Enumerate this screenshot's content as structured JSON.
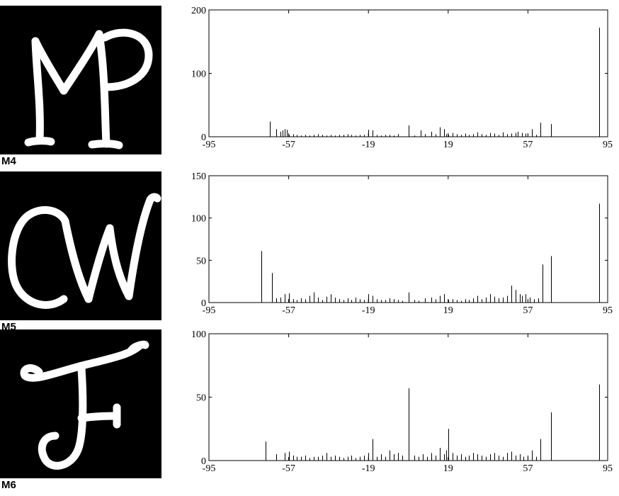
{
  "chart_data": [
    {
      "type": "bar",
      "label": "M4",
      "xlim": [
        -95,
        95
      ],
      "ylim": [
        0,
        200
      ],
      "xticks": [
        -95,
        -57,
        -19,
        19,
        57,
        95
      ],
      "yticks": [
        0,
        100,
        200
      ],
      "x": [
        -66,
        -63,
        -61,
        -60,
        -59,
        -58,
        -57,
        -55,
        -53,
        -51,
        -49,
        -47,
        -45,
        -43,
        -41,
        -39,
        -37,
        -35,
        -33,
        -31,
        -29,
        -27,
        -25,
        -23,
        -21,
        -19,
        -17,
        -15,
        -13,
        -11,
        -9,
        -7,
        -5,
        0,
        3,
        6,
        8,
        11,
        13,
        15,
        17,
        18,
        19,
        21,
        23,
        25,
        27,
        29,
        31,
        33,
        35,
        37,
        39,
        41,
        43,
        45,
        47,
        49,
        51,
        52,
        54,
        56,
        57,
        59,
        61,
        63,
        68,
        91
      ],
      "values": [
        24,
        12,
        8,
        10,
        12,
        11,
        3,
        4,
        3,
        2,
        3,
        2,
        3,
        4,
        3,
        2,
        3,
        2,
        3,
        3,
        4,
        3,
        2,
        3,
        3,
        11,
        10,
        3,
        2,
        3,
        3,
        2,
        4,
        18,
        2,
        10,
        4,
        8,
        4,
        15,
        12,
        4,
        3,
        6,
        4,
        3,
        5,
        3,
        4,
        7,
        4,
        3,
        6,
        5,
        3,
        7,
        4,
        5,
        6,
        8,
        6,
        5,
        4,
        12,
        3,
        22,
        20,
        172
      ]
    },
    {
      "type": "bar",
      "label": "M5",
      "xlim": [
        -95,
        95
      ],
      "ylim": [
        0,
        150
      ],
      "xticks": [
        -95,
        -57,
        -19,
        19,
        57,
        95
      ],
      "yticks": [
        0,
        50,
        100,
        150
      ],
      "x": [
        -70,
        -65,
        -63,
        -61,
        -59,
        -57,
        -55,
        -53,
        -51,
        -49,
        -47,
        -45,
        -43,
        -41,
        -39,
        -37,
        -35,
        -33,
        -31,
        -29,
        -27,
        -25,
        -23,
        -21,
        -19,
        -17,
        -15,
        -13,
        -11,
        -9,
        -7,
        -5,
        -3,
        0,
        3,
        5,
        8,
        11,
        13,
        15,
        17,
        19,
        21,
        23,
        25,
        27,
        29,
        31,
        33,
        35,
        37,
        39,
        41,
        43,
        45,
        47,
        49,
        51,
        53,
        54,
        56,
        58,
        60,
        62,
        64,
        68,
        91
      ],
      "values": [
        61,
        35,
        5,
        6,
        10,
        11,
        4,
        3,
        5,
        4,
        8,
        12,
        6,
        3,
        7,
        10,
        6,
        4,
        3,
        5,
        3,
        6,
        4,
        3,
        10,
        8,
        4,
        3,
        3,
        5,
        4,
        3,
        2,
        12,
        3,
        2,
        5,
        6,
        4,
        8,
        10,
        3,
        4,
        3,
        2,
        4,
        3,
        5,
        8,
        4,
        6,
        10,
        7,
        5,
        6,
        8,
        20,
        15,
        10,
        8,
        10,
        6,
        4,
        5,
        45,
        55,
        117
      ]
    },
    {
      "type": "bar",
      "label": "M6",
      "xlim": [
        -95,
        95
      ],
      "ylim": [
        0,
        100
      ],
      "xticks": [
        -95,
        -57,
        -19,
        19,
        57,
        95
      ],
      "yticks": [
        0,
        50,
        100
      ],
      "x": [
        -68,
        -63,
        -59,
        -57,
        -55,
        -53,
        -51,
        -49,
        -47,
        -45,
        -43,
        -41,
        -39,
        -37,
        -35,
        -33,
        -31,
        -29,
        -27,
        -25,
        -23,
        -21,
        -19,
        -17,
        -15,
        -13,
        -11,
        -9,
        -7,
        -5,
        -3,
        0,
        3,
        5,
        7,
        9,
        11,
        13,
        15,
        17,
        18,
        19,
        21,
        23,
        25,
        27,
        29,
        31,
        33,
        35,
        37,
        39,
        41,
        43,
        45,
        47,
        49,
        51,
        53,
        55,
        57,
        59,
        61,
        63,
        68,
        91
      ],
      "values": [
        15,
        5,
        6,
        7,
        4,
        3,
        3,
        4,
        2,
        3,
        3,
        4,
        6,
        3,
        4,
        3,
        2,
        3,
        4,
        2,
        3,
        4,
        6,
        17,
        3,
        5,
        3,
        8,
        5,
        6,
        4,
        57,
        4,
        3,
        5,
        3,
        6,
        4,
        10,
        5,
        8,
        25,
        6,
        4,
        5,
        3,
        4,
        6,
        5,
        4,
        3,
        5,
        6,
        4,
        3,
        6,
        7,
        4,
        5,
        3,
        4,
        8,
        3,
        17,
        38,
        60
      ]
    }
  ]
}
